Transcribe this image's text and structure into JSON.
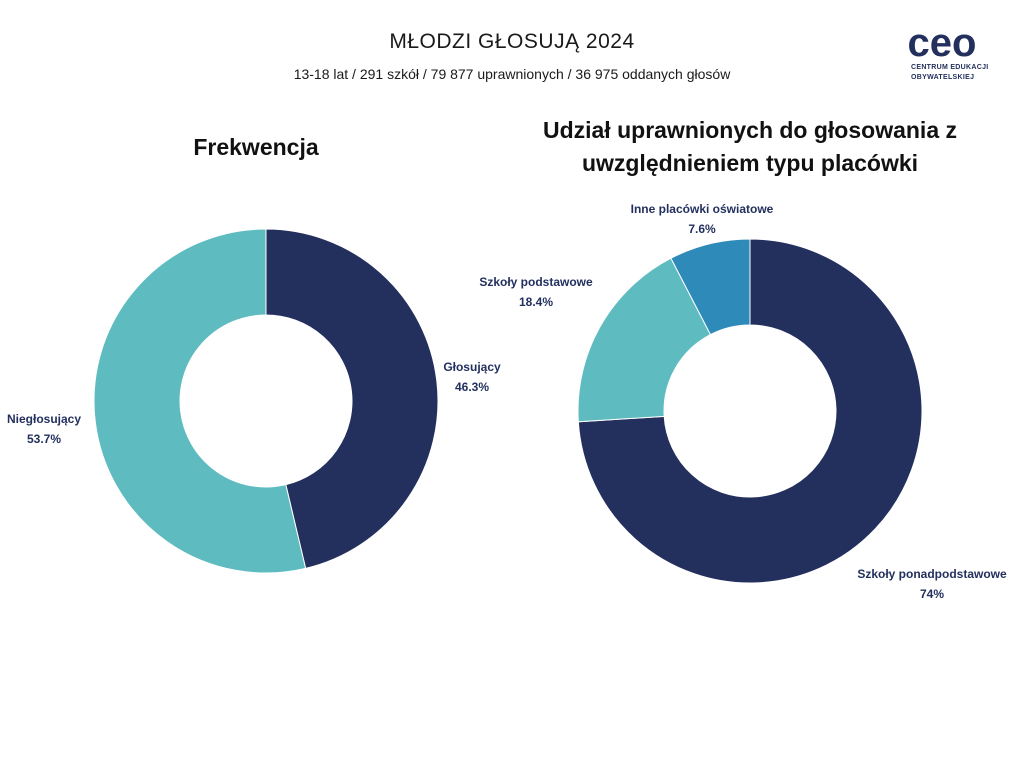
{
  "header": {
    "title": "MŁODZI GŁOSUJĄ 2024",
    "subtitle": "13-18 lat / 291 szkół / 79 877 uprawnionych / 36 975 oddanych głosów"
  },
  "logo": {
    "wordmark": "ceo",
    "line1": "CENTRUM EDUKACJI",
    "line2": "OBYWATELSKIEJ",
    "color": "#23305e"
  },
  "chart_data": [
    {
      "type": "pie",
      "variant": "donut",
      "title": "Frekwencja",
      "slices": [
        {
          "label": "Głosujący",
          "value": 46.3,
          "display": "46.3%",
          "color": "#23305e"
        },
        {
          "label": "Niegłosujący",
          "value": 53.7,
          "display": "53.7%",
          "color": "#5ebcc1"
        }
      ],
      "start": "top",
      "direction": "clockwise"
    },
    {
      "type": "pie",
      "variant": "donut",
      "title": "Udział uprawnionych do głosowania z uwzględnieniem typu placówki",
      "slices": [
        {
          "label": "Szkoły ponadpodstawowe",
          "value": 74,
          "display": "74%",
          "color": "#23305e"
        },
        {
          "label": "Szkoły podstawowe",
          "value": 18.4,
          "display": "18.4%",
          "color": "#5ebcc1"
        },
        {
          "label": "Inne placówki oświatowe",
          "value": 7.6,
          "display": "7.6%",
          "color": "#2e8ab8"
        }
      ],
      "start": "top",
      "direction": "clockwise"
    }
  ]
}
